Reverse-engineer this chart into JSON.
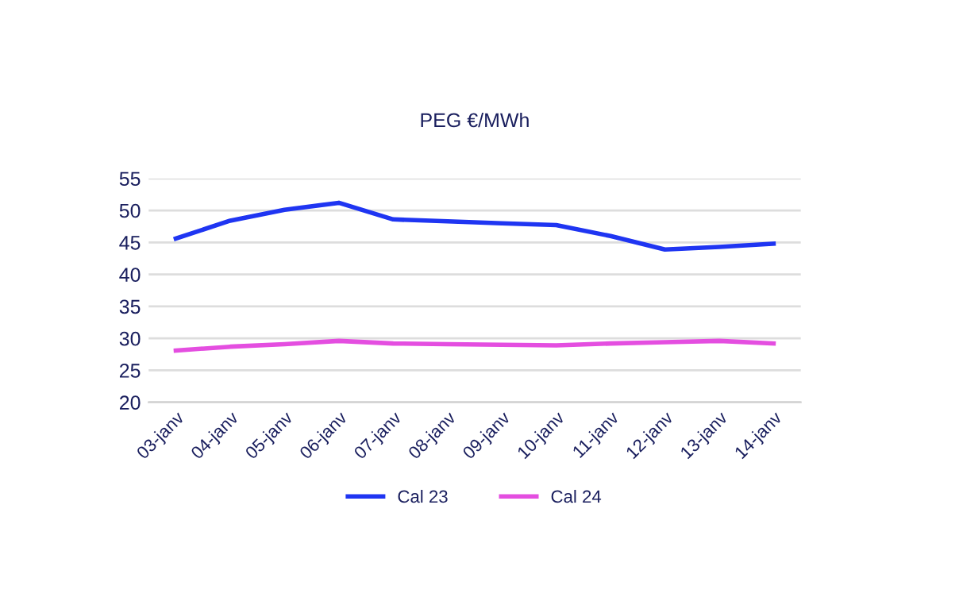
{
  "chart_data": {
    "type": "line",
    "title": "PEG €/MWh",
    "categories": [
      "03-janv",
      "04-janv",
      "05-janv",
      "06-janv",
      "07-janv",
      "08-janv",
      "09-janv",
      "10-janv",
      "11-janv",
      "12-janv",
      "13-janv",
      "14-janv"
    ],
    "series": [
      {
        "name": "Cal 23",
        "color": "#1f35f2",
        "values": [
          45.6,
          48.4,
          50.1,
          51.2,
          48.6,
          48.3,
          48.0,
          47.7,
          46.0,
          43.9,
          44.3,
          44.8
        ]
      },
      {
        "name": "Cal 24",
        "color": "#e44ee0",
        "values": [
          28.1,
          28.7,
          29.1,
          29.6,
          29.2,
          29.1,
          29.0,
          28.9,
          29.2,
          29.4,
          29.6,
          29.2
        ]
      }
    ],
    "ylim": [
      20,
      55
    ],
    "yticks": [
      20,
      25,
      30,
      35,
      40,
      45,
      50,
      55
    ],
    "grid": "y",
    "legend": "bottom",
    "marker": "none",
    "line_style": "solid"
  }
}
